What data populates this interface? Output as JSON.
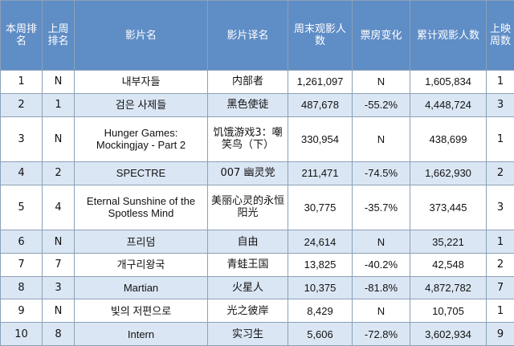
{
  "table": {
    "headers": {
      "rank": "本周排名",
      "prev_rank": "上周排名",
      "title": "影片名",
      "title_cn": "影片译名",
      "weekend_admissions": "周末观影人数",
      "change": "票房变化",
      "total_admissions": "累计观影人数",
      "weeks": "上映周数"
    },
    "rows": [
      {
        "rank": "1",
        "prev_rank": "N",
        "title": "내부자들",
        "title_cn": "内部者",
        "weekend_admissions": "1,261,097",
        "change": "N",
        "total_admissions": "1,605,834",
        "weeks": "1"
      },
      {
        "rank": "2",
        "prev_rank": "1",
        "title": "검은 사제들",
        "title_cn": "黑色使徒",
        "weekend_admissions": "487,678",
        "change": "-55.2%",
        "total_admissions": "4,448,724",
        "weeks": "3"
      },
      {
        "rank": "3",
        "prev_rank": "N",
        "title": "Hunger Games: Mockingjay - Part 2",
        "title_cn": "饥饿游戏3：嘲笑鸟（下）",
        "weekend_admissions": "330,954",
        "change": "N",
        "total_admissions": "438,699",
        "weeks": "1"
      },
      {
        "rank": "4",
        "prev_rank": "2",
        "title": "SPECTRE",
        "title_cn": "007 幽灵党",
        "weekend_admissions": "211,471",
        "change": "-74.5%",
        "total_admissions": "1,662,930",
        "weeks": "2"
      },
      {
        "rank": "5",
        "prev_rank": "4",
        "title": "Eternal Sunshine of the Spotless Mind",
        "title_cn": "美丽心灵的永恒阳光",
        "weekend_admissions": "30,775",
        "change": "-35.7%",
        "total_admissions": "373,445",
        "weeks": "3"
      },
      {
        "rank": "6",
        "prev_rank": "N",
        "title": "프리덤",
        "title_cn": "自由",
        "weekend_admissions": "24,614",
        "change": "N",
        "total_admissions": "35,221",
        "weeks": "1"
      },
      {
        "rank": "7",
        "prev_rank": "7",
        "title": "개구리왕국",
        "title_cn": "青蛙王国",
        "weekend_admissions": "13,825",
        "change": "-40.2%",
        "total_admissions": "42,548",
        "weeks": "2"
      },
      {
        "rank": "8",
        "prev_rank": "3",
        "title": "Martian",
        "title_cn": "火星人",
        "weekend_admissions": "10,375",
        "change": "-81.8%",
        "total_admissions": "4,872,782",
        "weeks": "7"
      },
      {
        "rank": "9",
        "prev_rank": "N",
        "title": "빛의 저편으로",
        "title_cn": "光之彼岸",
        "weekend_admissions": "8,429",
        "change": "N",
        "total_admissions": "10,705",
        "weeks": "1"
      },
      {
        "rank": "10",
        "prev_rank": "8",
        "title": "Intern",
        "title_cn": "实习生",
        "weekend_admissions": "5,606",
        "change": "-72.8%",
        "total_admissions": "3,602,934",
        "weeks": "9"
      }
    ]
  }
}
